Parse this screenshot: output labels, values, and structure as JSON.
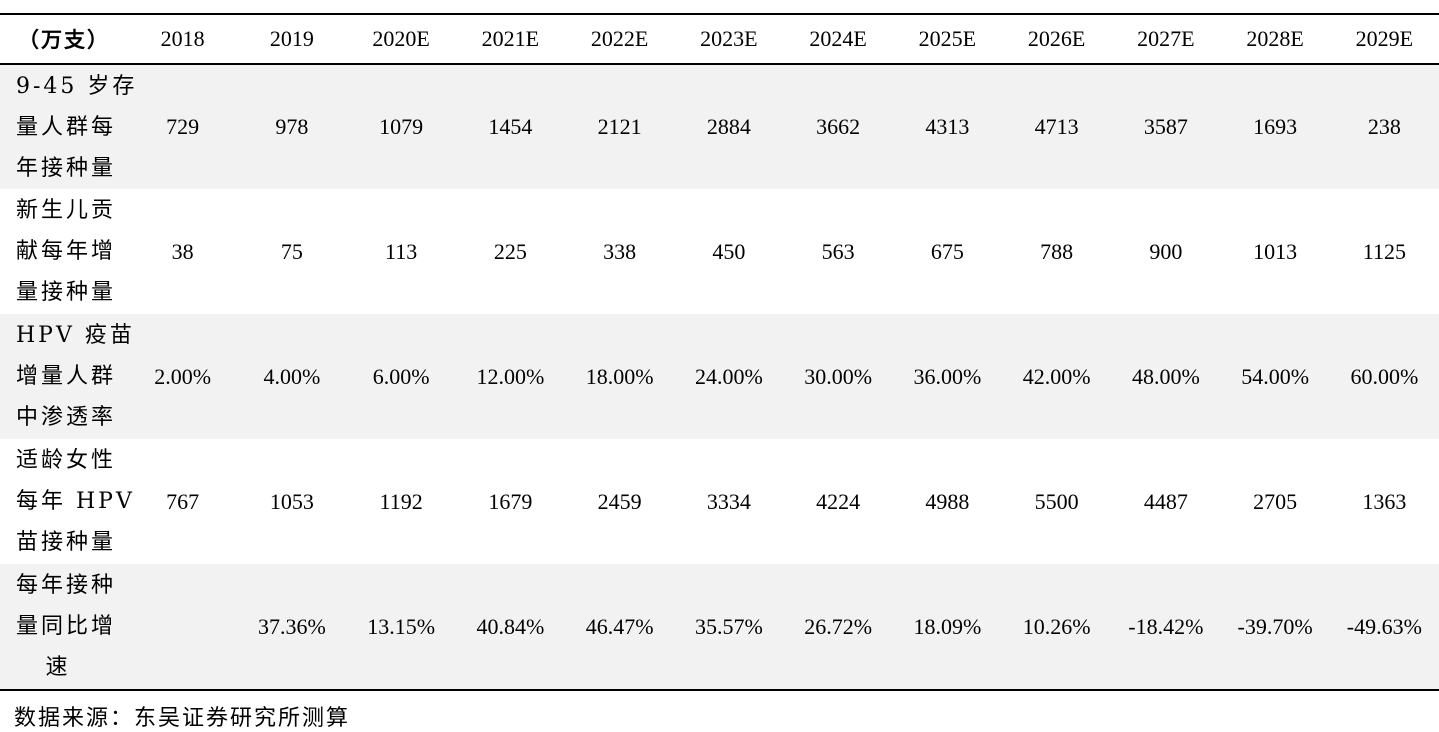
{
  "table": {
    "corner": "（万支）",
    "columns": [
      "2018",
      "2019",
      "2020E",
      "2021E",
      "2022E",
      "2023E",
      "2024E",
      "2025E",
      "2026E",
      "2027E",
      "2028E",
      "2029E"
    ],
    "rows": [
      {
        "label_lines": [
          "9-45 岁存",
          "量人群每",
          "年接种量"
        ],
        "values": [
          "729",
          "978",
          "1079",
          "1454",
          "2121",
          "2884",
          "3662",
          "4313",
          "4713",
          "3587",
          "1693",
          "238"
        ]
      },
      {
        "label_lines": [
          "新生儿贡",
          "献每年增",
          "量接种量"
        ],
        "values": [
          "38",
          "75",
          "113",
          "225",
          "338",
          "450",
          "563",
          "675",
          "788",
          "900",
          "1013",
          "1125"
        ]
      },
      {
        "label_lines": [
          "HPV 疫苗",
          "增量人群",
          "中渗透率"
        ],
        "values": [
          "2.00%",
          "4.00%",
          "6.00%",
          "12.00%",
          "18.00%",
          "24.00%",
          "30.00%",
          "36.00%",
          "42.00%",
          "48.00%",
          "54.00%",
          "60.00%"
        ]
      },
      {
        "label_lines": [
          "适龄女性",
          "每年 HPV",
          "苗接种量"
        ],
        "values": [
          "767",
          "1053",
          "1192",
          "1679",
          "2459",
          "3334",
          "4224",
          "4988",
          "5500",
          "4487",
          "2705",
          "1363"
        ]
      },
      {
        "label_lines": [
          "每年接种",
          "量同比增",
          "速"
        ],
        "values": [
          "",
          "37.36%",
          "13.15%",
          "40.84%",
          "46.47%",
          "35.57%",
          "26.72%",
          "18.09%",
          "10.26%",
          "-18.42%",
          "-39.70%",
          "-49.63%"
        ]
      }
    ]
  },
  "source": "数据来源：东吴证券研究所测算"
}
